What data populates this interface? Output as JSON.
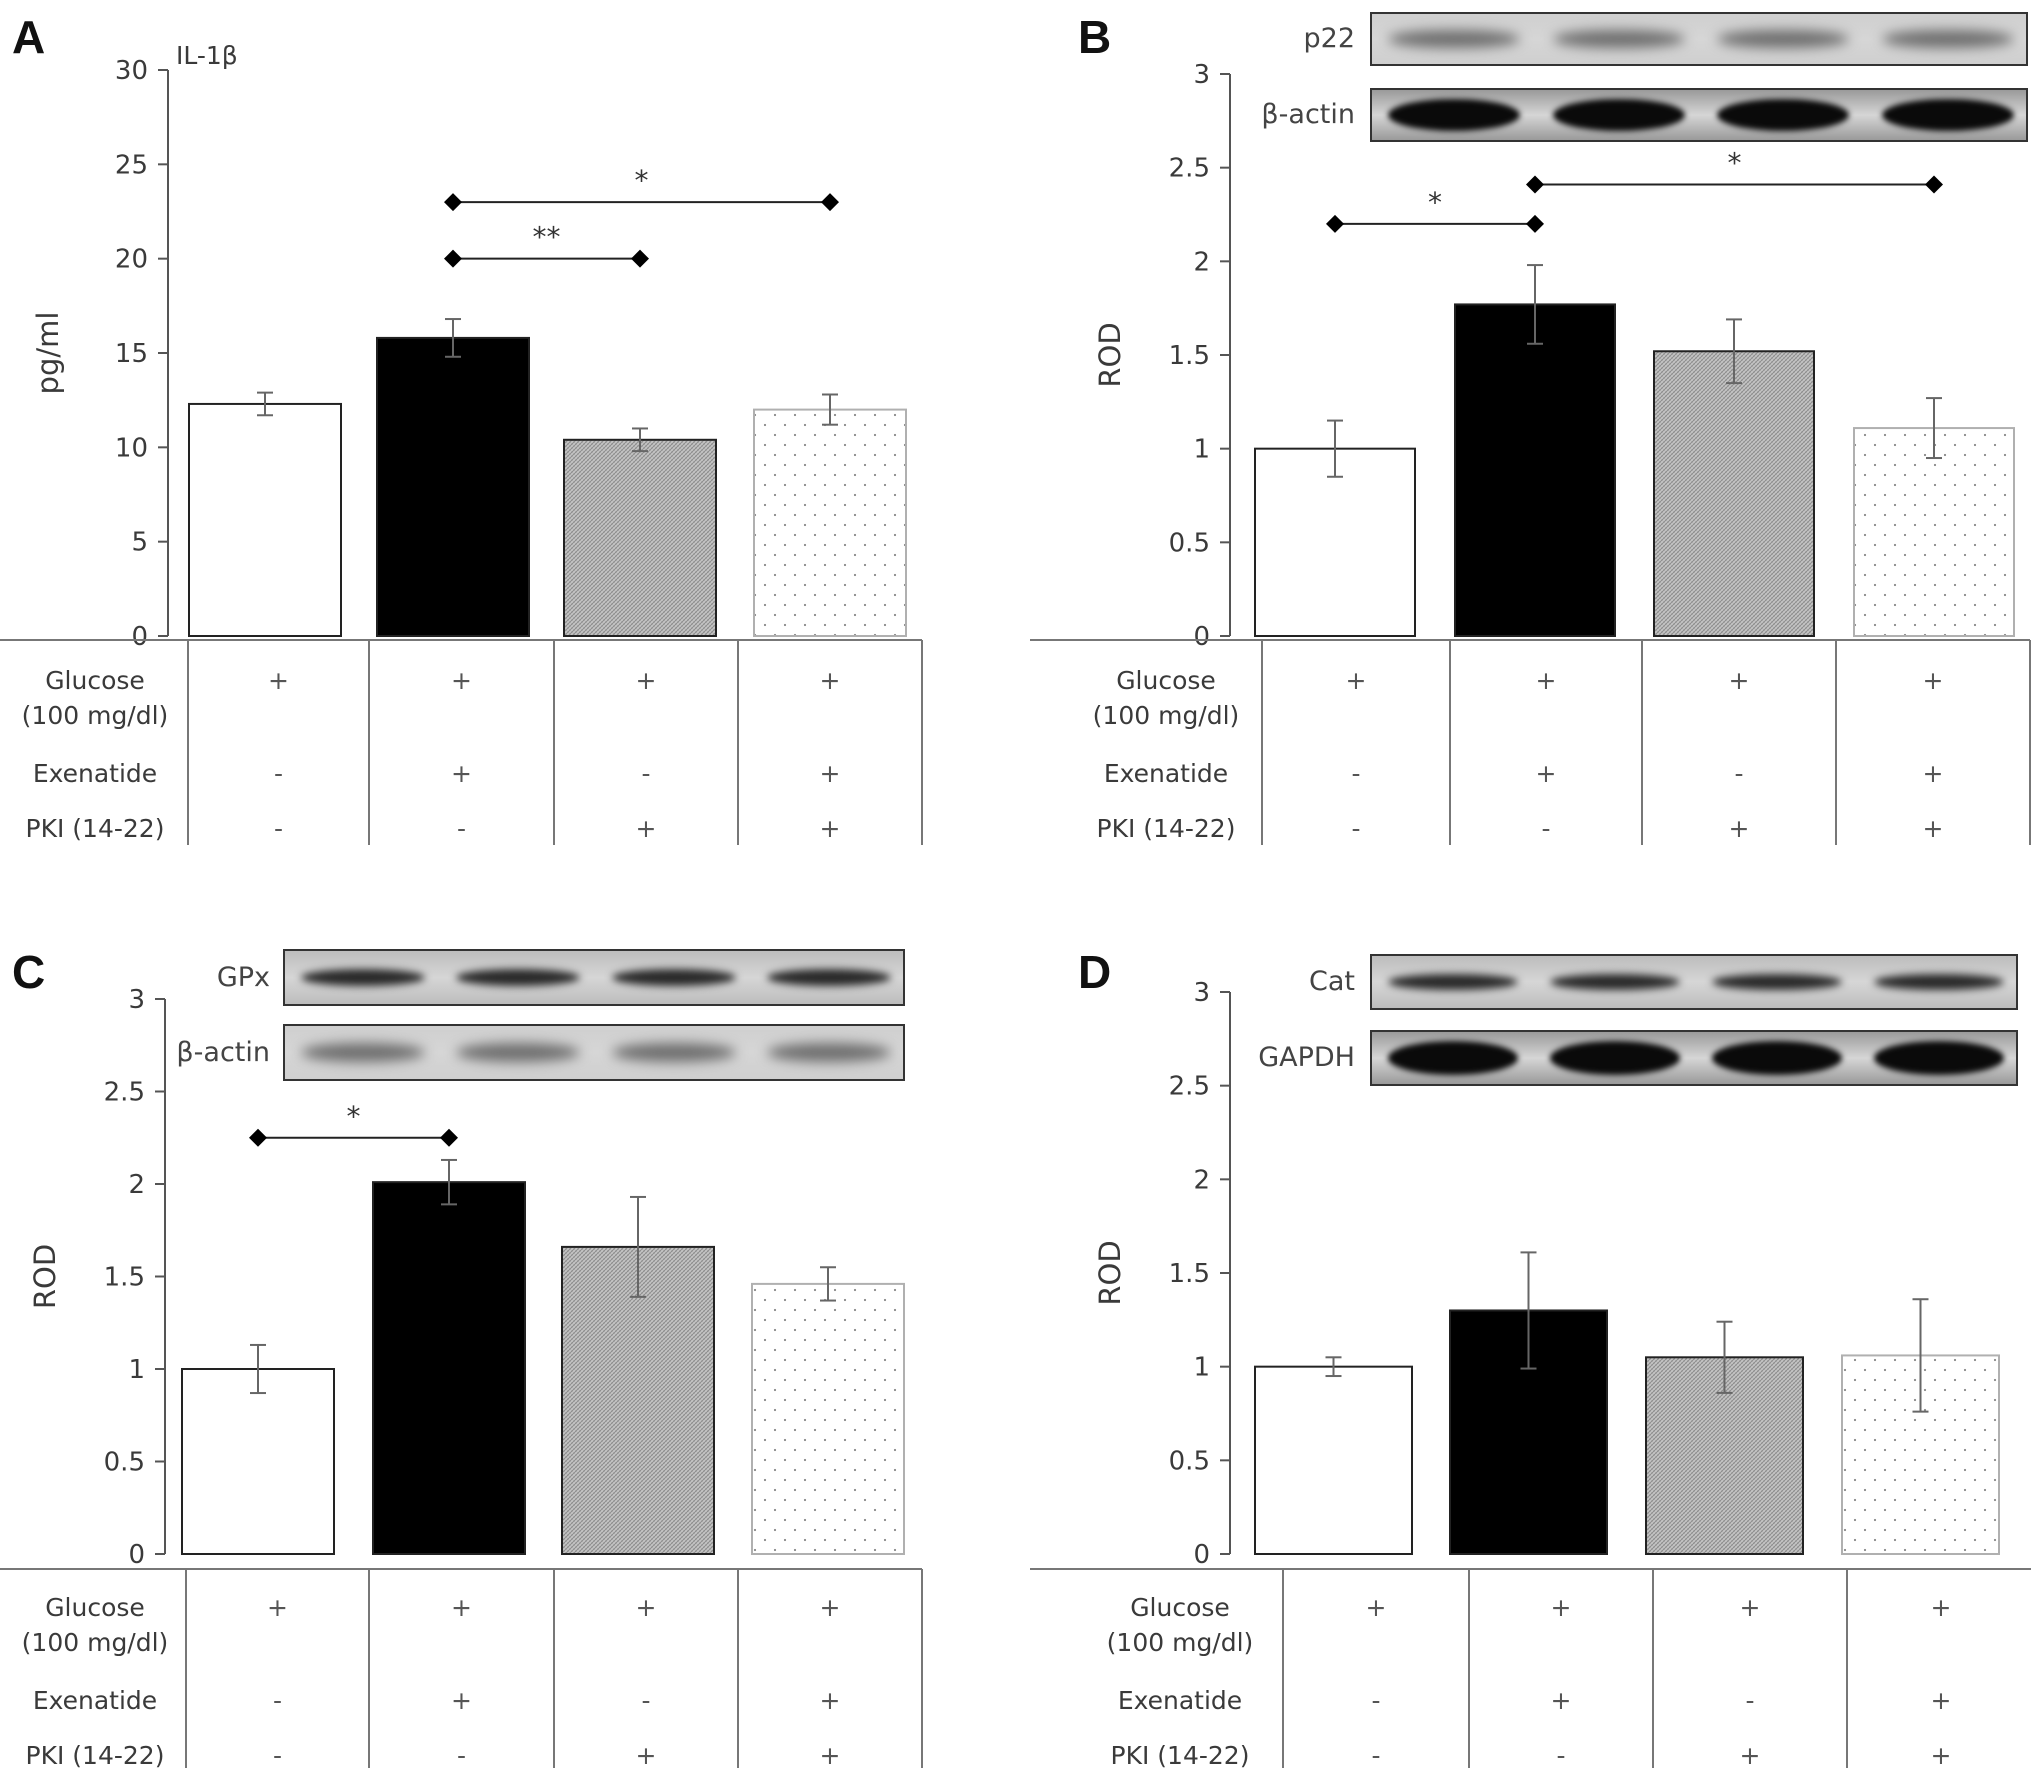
{
  "treatment_table": {
    "rows": [
      {
        "label_line1": "Glucose",
        "label_line2": "(100 mg/dl)",
        "marks": [
          "+",
          "+",
          "+",
          "+"
        ]
      },
      {
        "label_line1": "Exenatide",
        "label_line2": "",
        "marks": [
          "-",
          "+",
          "-",
          "+"
        ]
      },
      {
        "label_line1": "PKI (14-22)",
        "label_line2": "",
        "marks": [
          "-",
          "-",
          "+",
          "+"
        ]
      }
    ]
  },
  "colors": {
    "bar_fills": [
      "#ffffff",
      "#000000",
      "#b8b8b8",
      "#ffffff"
    ],
    "bar_patterns": [
      "none",
      "solid",
      "crosshatch",
      "dots"
    ],
    "axis": "#555555",
    "text": "#3a3a3a"
  },
  "chart_data": [
    {
      "panel": "A",
      "type": "bar",
      "title": "IL-1β",
      "ylabel": "pg/ml",
      "ylim": [
        0,
        30
      ],
      "yticks": [
        "0",
        "5",
        "10",
        "15",
        "20",
        "25",
        "30"
      ],
      "values": [
        12.3,
        15.8,
        10.4,
        12.0
      ],
      "errors": [
        0.6,
        1.0,
        0.6,
        0.8
      ],
      "significance": [
        {
          "from": 1,
          "to": 3,
          "y": 23,
          "label": "*"
        },
        {
          "from": 1,
          "to": 2,
          "y": 20,
          "label": "**"
        }
      ],
      "blots": []
    },
    {
      "panel": "B",
      "type": "bar",
      "title": "",
      "ylabel": "ROD",
      "ylim": [
        0,
        3
      ],
      "yticks": [
        "0",
        "0.5",
        "1",
        "1.5",
        "2",
        "2.5",
        "3"
      ],
      "values": [
        1.0,
        1.77,
        1.52,
        1.11
      ],
      "errors": [
        0.15,
        0.21,
        0.17,
        0.16
      ],
      "significance": [
        {
          "from": 0,
          "to": 1,
          "y": 2.2,
          "label": "*"
        },
        {
          "from": 1,
          "to": 3,
          "y": 2.41,
          "label": "*"
        }
      ],
      "blots": [
        {
          "label": "p22",
          "style": "faint"
        },
        {
          "label": "β-actin",
          "style": "dark"
        }
      ]
    },
    {
      "panel": "C",
      "type": "bar",
      "title": "",
      "ylabel": "ROD",
      "ylim": [
        0,
        3
      ],
      "yticks": [
        "0",
        "0.5",
        "1",
        "1.5",
        "2",
        "2.5",
        "3"
      ],
      "values": [
        1.0,
        2.01,
        1.66,
        1.46
      ],
      "errors": [
        0.13,
        0.12,
        0.27,
        0.09
      ],
      "significance": [
        {
          "from": 0,
          "to": 1,
          "y": 2.25,
          "label": "*"
        }
      ],
      "blots": [
        {
          "label": "GPx",
          "style": "medium"
        },
        {
          "label": "β-actin",
          "style": "faint"
        }
      ]
    },
    {
      "panel": "D",
      "type": "bar",
      "title": "",
      "ylabel": "ROD",
      "ylim": [
        0,
        3
      ],
      "yticks": [
        "0",
        "0.5",
        "1",
        "1.5",
        "2",
        "2.5",
        "3"
      ],
      "values": [
        1.0,
        1.3,
        1.05,
        1.06
      ],
      "errors": [
        0.05,
        0.31,
        0.19,
        0.3
      ],
      "significance": [],
      "blots": [
        {
          "label": "Cat",
          "style": "medium"
        },
        {
          "label": "GAPDH",
          "style": "dark"
        }
      ]
    }
  ]
}
